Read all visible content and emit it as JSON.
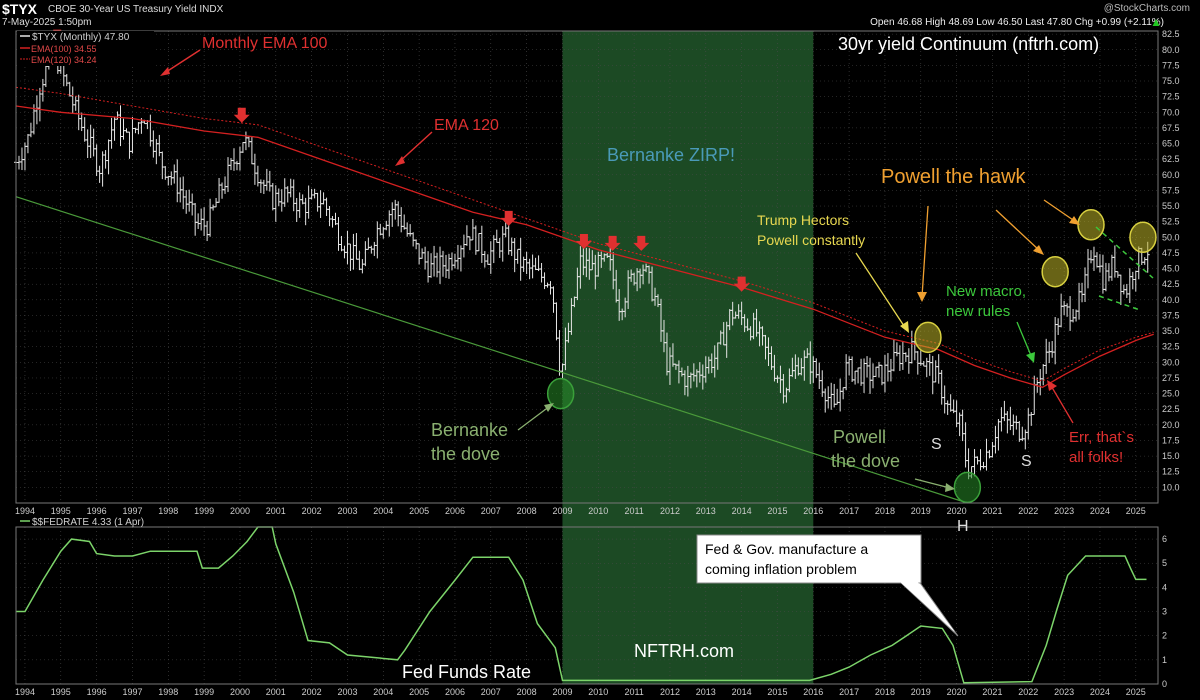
{
  "header": {
    "symbol": "$TYX",
    "name": "CBOE 30-Year US Treasury Yield INDX",
    "date": "7-May-2025 1:50pm",
    "watermark": "@StockCharts.com",
    "ohlc": "Open 46.68  High 48.69  Low 46.50  Last 47.80  Chg +0.99 (+2.11%)",
    "ohlc_arrow": "▲"
  },
  "chart_data": [
    {
      "type": "candlestick",
      "title": "30yr yield Continuum (nftrh.com)",
      "legend": {
        "main": "$TYX (Monthly) 47.80",
        "ema100": "EMA(100) 34.55",
        "ema120": "EMA(120) 34.24"
      },
      "x_labels": [
        "1994",
        "1995",
        "1996",
        "1997",
        "1998",
        "1999",
        "2000",
        "2001",
        "2002",
        "2003",
        "2004",
        "2005",
        "2006",
        "2007",
        "2008",
        "2009",
        "2010",
        "2011",
        "2012",
        "2013",
        "2014",
        "2015",
        "2016",
        "2017",
        "2018",
        "2019",
        "2020",
        "2021",
        "2022",
        "2023",
        "2024",
        "2025"
      ],
      "xlim": [
        1993.75,
        2025.62
      ],
      "ylim": [
        7.5,
        83
      ],
      "y_ticks": [
        "10.0",
        "12.5",
        "15.0",
        "17.5",
        "20.0",
        "22.5",
        "25.0",
        "27.5",
        "30.0",
        "32.5",
        "35.0",
        "37.5",
        "40.0",
        "42.5",
        "45.0",
        "47.5",
        "50.0",
        "52.5",
        "55.0",
        "57.5",
        "60.0",
        "62.5",
        "65.0",
        "67.5",
        "70.0",
        "72.5",
        "75.0",
        "77.5",
        "80.0",
        "82.5"
      ],
      "y_tick_values": [
        10,
        12.5,
        15,
        17.5,
        20,
        22.5,
        25,
        27.5,
        30,
        32.5,
        35,
        37.5,
        40,
        42.5,
        45,
        47.5,
        50,
        52.5,
        55,
        57.5,
        60,
        62.5,
        65,
        67.5,
        70,
        72.5,
        75,
        77.5,
        80,
        82.5
      ],
      "price_path": [
        [
          1993.75,
          62
        ],
        [
          1994.1,
          66
        ],
        [
          1994.4,
          74
        ],
        [
          1994.8,
          80
        ],
        [
          1995.3,
          72
        ],
        [
          1995.7,
          66
        ],
        [
          1996.1,
          61
        ],
        [
          1996.5,
          69
        ],
        [
          1996.9,
          65
        ],
        [
          1997.3,
          70
        ],
        [
          1997.8,
          62
        ],
        [
          1998.3,
          58
        ],
        [
          1998.8,
          52
        ],
        [
          1999.1,
          52
        ],
        [
          1999.5,
          58
        ],
        [
          1999.9,
          63
        ],
        [
          2000.1,
          66
        ],
        [
          2000.6,
          59
        ],
        [
          2000.9,
          56
        ],
        [
          2001.3,
          57
        ],
        [
          2001.7,
          55
        ],
        [
          2002.3,
          56
        ],
        [
          2002.8,
          50
        ],
        [
          2003.4,
          45
        ],
        [
          2003.8,
          51
        ],
        [
          2004.3,
          55
        ],
        [
          2004.8,
          49
        ],
        [
          2005.3,
          45
        ],
        [
          2005.8,
          46
        ],
        [
          2006.4,
          51
        ],
        [
          2006.9,
          47
        ],
        [
          2007.4,
          50
        ],
        [
          2007.8,
          46
        ],
        [
          2008.3,
          44
        ],
        [
          2008.7,
          43
        ],
        [
          2008.95,
          28
        ],
        [
          2009.2,
          36
        ],
        [
          2009.5,
          46
        ],
        [
          2009.8,
          45
        ],
        [
          2010.3,
          46
        ],
        [
          2010.6,
          39
        ],
        [
          2010.9,
          43
        ],
        [
          2011.2,
          46
        ],
        [
          2011.6,
          40
        ],
        [
          2011.9,
          30
        ],
        [
          2012.5,
          27
        ],
        [
          2012.9,
          29
        ],
        [
          2013.3,
          31
        ],
        [
          2013.7,
          38
        ],
        [
          2014.0,
          37
        ],
        [
          2014.4,
          35
        ],
        [
          2014.9,
          29
        ],
        [
          2015.2,
          26
        ],
        [
          2015.6,
          30
        ],
        [
          2015.9,
          30
        ],
        [
          2016.3,
          26
        ],
        [
          2016.6,
          22
        ],
        [
          2016.9,
          29
        ],
        [
          2017.5,
          28
        ],
        [
          2017.9,
          28
        ],
        [
          2018.4,
          31
        ],
        [
          2018.8,
          32
        ],
        [
          2019.1,
          30
        ],
        [
          2019.5,
          27
        ],
        [
          2019.8,
          22
        ],
        [
          2020.1,
          20
        ],
        [
          2020.3,
          13
        ],
        [
          2020.6,
          14
        ],
        [
          2020.9,
          16
        ],
        [
          2021.2,
          21
        ],
        [
          2021.5,
          20
        ],
        [
          2021.8,
          19
        ],
        [
          2022.0,
          21
        ],
        [
          2022.3,
          28
        ],
        [
          2022.6,
          32
        ],
        [
          2022.9,
          38
        ],
        [
          2023.1,
          38
        ],
        [
          2023.5,
          40
        ],
        [
          2023.8,
          49
        ],
        [
          2024.1,
          43
        ],
        [
          2024.4,
          46
        ],
        [
          2024.7,
          41
        ],
        [
          2025.0,
          46
        ],
        [
          2025.3,
          48
        ]
      ],
      "ema120_path": [
        [
          1993.75,
          71
        ],
        [
          1995.0,
          70
        ],
        [
          1997.0,
          69
        ],
        [
          1999.0,
          67
        ],
        [
          2000.5,
          66
        ],
        [
          2002.5,
          62
        ],
        [
          2004.5,
          58
        ],
        [
          2006.5,
          54
        ],
        [
          2008.0,
          52
        ],
        [
          2010.0,
          48
        ],
        [
          2012.0,
          45
        ],
        [
          2014.0,
          42
        ],
        [
          2016.0,
          38.5
        ],
        [
          2018.0,
          34
        ],
        [
          2019.5,
          32
        ],
        [
          2020.5,
          29.5
        ],
        [
          2021.5,
          27.5
        ],
        [
          2022.4,
          26
        ],
        [
          2023.0,
          28
        ],
        [
          2024.0,
          31
        ],
        [
          2025.0,
          33.5
        ],
        [
          2025.5,
          34.5
        ]
      ],
      "ema100_path": [
        [
          1993.75,
          74
        ],
        [
          1995.0,
          73
        ],
        [
          1997.0,
          71
        ],
        [
          1999.0,
          69
        ],
        [
          2000.5,
          68
        ],
        [
          2002.5,
          64
        ],
        [
          2004.5,
          60
        ],
        [
          2006.5,
          56
        ],
        [
          2008.0,
          53
        ],
        [
          2010.0,
          49
        ],
        [
          2012.0,
          46
        ],
        [
          2014.0,
          43
        ],
        [
          2016.0,
          39.5
        ],
        [
          2018.0,
          35
        ],
        [
          2019.5,
          33
        ],
        [
          2020.5,
          30.5
        ],
        [
          2021.5,
          28.5
        ],
        [
          2022.4,
          27
        ],
        [
          2023.0,
          29
        ],
        [
          2024.0,
          32
        ],
        [
          2025.0,
          34
        ],
        [
          2025.5,
          34.8
        ]
      ],
      "trendline": [
        [
          1993.75,
          56.5
        ],
        [
          2020.3,
          7.5
        ]
      ],
      "shaded_range": [
        2009.0,
        2016.0
      ],
      "annotations": {
        "monthly_ema100": "Monthly EMA 100",
        "ema120": "EMA 120",
        "zirp": "Bernanke ZIRP!",
        "hawk": "Powell the hawk",
        "trump_line1": "Trump Hectors",
        "trump_line2": "Powell constantly",
        "macro_line1": "New macro,",
        "macro_line2": "new rules",
        "err_line1": "Err, that`s",
        "err_line2": "all folks!",
        "dove1_line1": "Bernanke",
        "dove1_line2": "the dove",
        "dove2_line1": "Powell",
        "dove2_line2": "the dove",
        "s1": "S",
        "s2": "S",
        "h": "H"
      },
      "red_arrows": [
        [
          1994.9,
          80.5
        ],
        [
          2000.05,
          68
        ],
        [
          2007.5,
          51.5
        ],
        [
          2009.6,
          47.8
        ],
        [
          2010.4,
          47.5
        ],
        [
          2011.2,
          47.5
        ],
        [
          2014.0,
          41
        ]
      ],
      "circles": [
        [
          2008.95,
          25
        ],
        [
          2020.3,
          10
        ],
        [
          2019.2,
          34
        ],
        [
          2022.75,
          44.5
        ],
        [
          2023.75,
          52
        ],
        [
          2025.2,
          50
        ]
      ]
    },
    {
      "type": "line",
      "legend": "$$FEDRATE 4.33 (1 Apr)",
      "ylim": [
        0,
        6.5
      ],
      "y_ticks": [
        "0",
        "1",
        "2",
        "3",
        "4",
        "5",
        "6"
      ],
      "y_tick_values": [
        0,
        1,
        2,
        3,
        4,
        5,
        6
      ],
      "x_labels": [
        "1994",
        "1995",
        "1996",
        "1997",
        "1998",
        "1999",
        "2000",
        "2001",
        "2002",
        "2003",
        "2004",
        "2005",
        "2006",
        "2007",
        "2008",
        "2009",
        "2010",
        "2011",
        "2012",
        "2013",
        "2014",
        "2015",
        "2016",
        "2017",
        "2018",
        "2019",
        "2020",
        "2021",
        "2022",
        "2023",
        "2024",
        "2025"
      ],
      "fed_path": [
        [
          1993.75,
          3.0
        ],
        [
          1994.0,
          3.0
        ],
        [
          1994.5,
          4.3
        ],
        [
          1995.0,
          5.5
        ],
        [
          1995.3,
          6.0
        ],
        [
          1995.8,
          5.9
        ],
        [
          1996.0,
          5.4
        ],
        [
          1996.5,
          5.3
        ],
        [
          1997.0,
          5.3
        ],
        [
          1997.5,
          5.5
        ],
        [
          1998.0,
          5.5
        ],
        [
          1998.8,
          5.5
        ],
        [
          1998.95,
          4.8
        ],
        [
          1999.4,
          4.8
        ],
        [
          1999.8,
          5.3
        ],
        [
          2000.2,
          5.9
        ],
        [
          2000.5,
          6.5
        ],
        [
          2000.9,
          6.5
        ],
        [
          2001.0,
          5.8
        ],
        [
          2001.5,
          3.8
        ],
        [
          2001.9,
          1.8
        ],
        [
          2002.5,
          1.7
        ],
        [
          2003.0,
          1.2
        ],
        [
          2004.4,
          1.0
        ],
        [
          2004.6,
          1.4
        ],
        [
          2005.3,
          3.0
        ],
        [
          2006.0,
          4.3
        ],
        [
          2006.5,
          5.25
        ],
        [
          2007.5,
          5.25
        ],
        [
          2007.9,
          4.3
        ],
        [
          2008.3,
          2.5
        ],
        [
          2008.8,
          1.5
        ],
        [
          2009.0,
          0.15
        ],
        [
          2015.9,
          0.15
        ],
        [
          2016.5,
          0.4
        ],
        [
          2017.0,
          0.7
        ],
        [
          2017.6,
          1.2
        ],
        [
          2018.2,
          1.6
        ],
        [
          2018.6,
          2.0
        ],
        [
          2019.0,
          2.4
        ],
        [
          2019.6,
          2.3
        ],
        [
          2019.9,
          1.6
        ],
        [
          2020.2,
          0.05
        ],
        [
          2022.1,
          0.1
        ],
        [
          2022.5,
          1.6
        ],
        [
          2022.8,
          3.1
        ],
        [
          2023.1,
          4.5
        ],
        [
          2023.6,
          5.3
        ],
        [
          2024.7,
          5.3
        ],
        [
          2024.85,
          4.8
        ],
        [
          2025.0,
          4.33
        ],
        [
          2025.3,
          4.33
        ]
      ],
      "annotations": {
        "callout_line1": "Fed & Gov. manufacture a",
        "callout_line2": "coming inflation problem",
        "title": "Fed Funds Rate",
        "site": "NFTRH.com"
      }
    }
  ],
  "colors": {
    "bars": "#e6e6e6",
    "ema120": "#d42020",
    "ema100": "#d42020",
    "trend": "#4a9a3a",
    "shade": "#1c4a24",
    "fed": "#7cd46a",
    "grid": "#4a4a4a",
    "circle_yellow": "#d8d040",
    "circle_green": "#3aa03a",
    "red_label": "#e03030",
    "blue_label": "#4a9ab8",
    "orange_label": "#f0a030",
    "yellow_label": "#e8d850",
    "green_label": "#3cc83c",
    "dove_label": "#8ab070"
  }
}
